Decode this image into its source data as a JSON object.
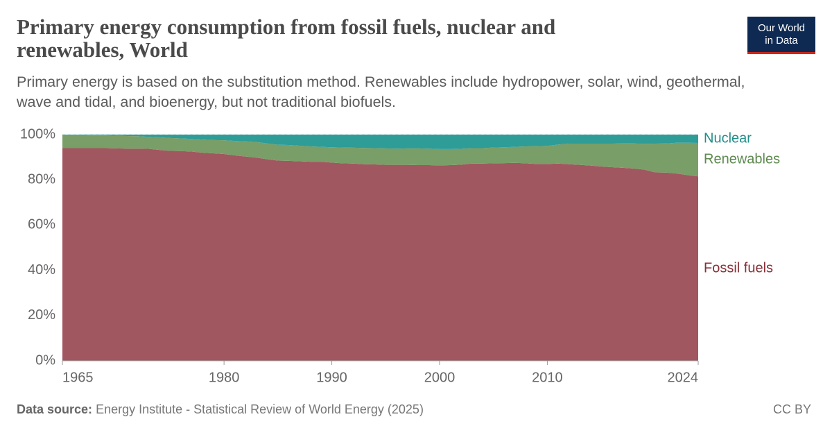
{
  "chart_data": {
    "type": "stacked-area",
    "title": "Primary energy consumption from fossil fuels, nuclear and renewables, World",
    "subtitle": "Primary energy is based on the substitution method. Renewables include hydropower, solar, wind, geothermal, wave and tidal, and bioenergy, but not traditional biofuels.",
    "source_label": "Data source:",
    "source": "Energy Institute - Statistical Review of World Energy (2025)",
    "license": "CC BY",
    "logo": [
      "Our World",
      "in Data"
    ],
    "x": [
      1965,
      1966,
      1967,
      1968,
      1969,
      1970,
      1971,
      1972,
      1973,
      1974,
      1975,
      1976,
      1977,
      1978,
      1979,
      1980,
      1981,
      1982,
      1983,
      1984,
      1985,
      1986,
      1987,
      1988,
      1989,
      1990,
      1991,
      1992,
      1993,
      1994,
      1995,
      1996,
      1997,
      1998,
      1999,
      2000,
      2001,
      2002,
      2003,
      2004,
      2005,
      2006,
      2007,
      2008,
      2009,
      2010,
      2011,
      2012,
      2013,
      2014,
      2015,
      2016,
      2017,
      2018,
      2019,
      2020,
      2021,
      2022,
      2023,
      2024
    ],
    "series": [
      {
        "name": "Fossil fuels",
        "color": "#a0575f",
        "label_color": "#883039",
        "values": [
          94.0,
          94.0,
          94.0,
          94.0,
          94.0,
          93.9,
          93.8,
          93.8,
          93.7,
          93.2,
          92.8,
          92.7,
          92.5,
          92.0,
          91.7,
          91.4,
          90.8,
          90.3,
          89.8,
          89.1,
          88.5,
          88.4,
          88.2,
          88.0,
          88.0,
          87.6,
          87.3,
          87.2,
          86.9,
          86.8,
          86.6,
          86.6,
          86.6,
          86.5,
          86.5,
          86.4,
          86.5,
          86.7,
          87.2,
          87.2,
          87.3,
          87.4,
          87.5,
          87.3,
          87.0,
          87.0,
          87.2,
          86.9,
          86.6,
          86.3,
          85.9,
          85.6,
          85.3,
          85.0,
          84.5,
          83.3,
          83.2,
          82.8,
          82.1,
          81.5
        ]
      },
      {
        "name": "Renewables",
        "color": "#7a9e68",
        "label_color": "#5d8a4f",
        "values": [
          5.8,
          5.8,
          5.7,
          5.6,
          5.6,
          5.6,
          5.6,
          5.5,
          5.3,
          5.6,
          5.7,
          5.6,
          5.6,
          5.8,
          5.9,
          6.1,
          6.4,
          6.7,
          6.9,
          7.0,
          7.0,
          7.0,
          6.9,
          6.8,
          6.6,
          6.8,
          7.0,
          7.0,
          7.2,
          7.2,
          7.3,
          7.2,
          7.3,
          7.4,
          7.3,
          7.2,
          7.1,
          7.0,
          6.8,
          6.8,
          7.0,
          7.0,
          7.1,
          7.5,
          7.9,
          8.0,
          8.4,
          9.1,
          9.4,
          9.7,
          10.1,
          10.4,
          10.8,
          11.1,
          11.4,
          12.7,
          12.9,
          13.6,
          14.3,
          14.8
        ]
      },
      {
        "name": "Nuclear",
        "color": "#2e9c97",
        "label_color": "#1f8f8a",
        "values": [
          0.2,
          0.2,
          0.3,
          0.4,
          0.4,
          0.5,
          0.6,
          0.7,
          1.0,
          1.2,
          1.5,
          1.7,
          1.9,
          2.2,
          2.4,
          2.5,
          2.8,
          3.0,
          3.3,
          3.9,
          4.5,
          4.6,
          4.9,
          5.2,
          5.4,
          5.6,
          5.7,
          5.8,
          5.9,
          6.0,
          6.1,
          6.2,
          6.1,
          6.1,
          6.2,
          6.4,
          6.4,
          6.3,
          6.0,
          6.0,
          5.7,
          5.6,
          5.4,
          5.2,
          5.1,
          5.0,
          4.4,
          4.0,
          4.0,
          4.0,
          4.0,
          4.0,
          3.9,
          3.9,
          4.1,
          4.0,
          3.9,
          3.6,
          3.6,
          3.7
        ]
      }
    ],
    "xlim": [
      1965,
      2024
    ],
    "xticks": [
      1965,
      1980,
      1990,
      2000,
      2010,
      2024
    ],
    "ylim": [
      0,
      100
    ],
    "yticks": [
      {
        "value": 0,
        "label": "0%"
      },
      {
        "value": 20,
        "label": "20%"
      },
      {
        "value": 40,
        "label": "40%"
      },
      {
        "value": 60,
        "label": "60%"
      },
      {
        "value": 80,
        "label": "80%"
      },
      {
        "value": 100,
        "label": "100%"
      }
    ],
    "grid": true
  }
}
